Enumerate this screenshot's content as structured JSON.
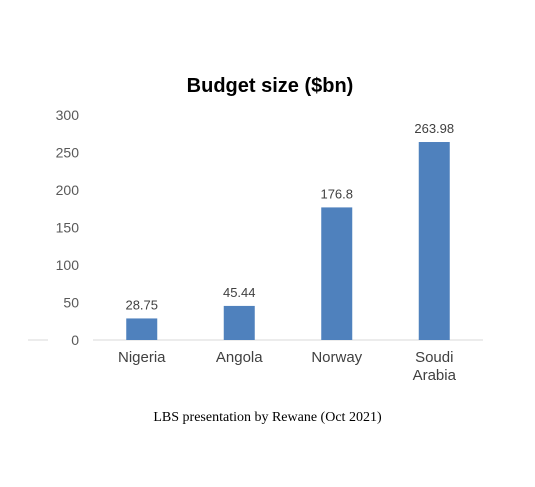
{
  "chart_data": {
    "type": "bar",
    "title": "Budget size ($bn)",
    "xlabel": "",
    "ylabel": "",
    "categories": [
      [
        "Nigeria"
      ],
      [
        "Angola"
      ],
      [
        "Norway"
      ],
      [
        "Soudi",
        "Arabia"
      ]
    ],
    "values": [
      28.75,
      45.44,
      176.8,
      263.98
    ],
    "data_labels": [
      "28.75",
      "45.44",
      "176.8",
      "263.98"
    ],
    "ylim": [
      0,
      300
    ],
    "yticks": [
      0,
      50,
      100,
      150,
      200,
      250,
      300
    ],
    "grid": false,
    "legend": "none",
    "bar_color": "#4F81BD"
  },
  "caption": "LBS presentation by Rewane (Oct 2021)"
}
